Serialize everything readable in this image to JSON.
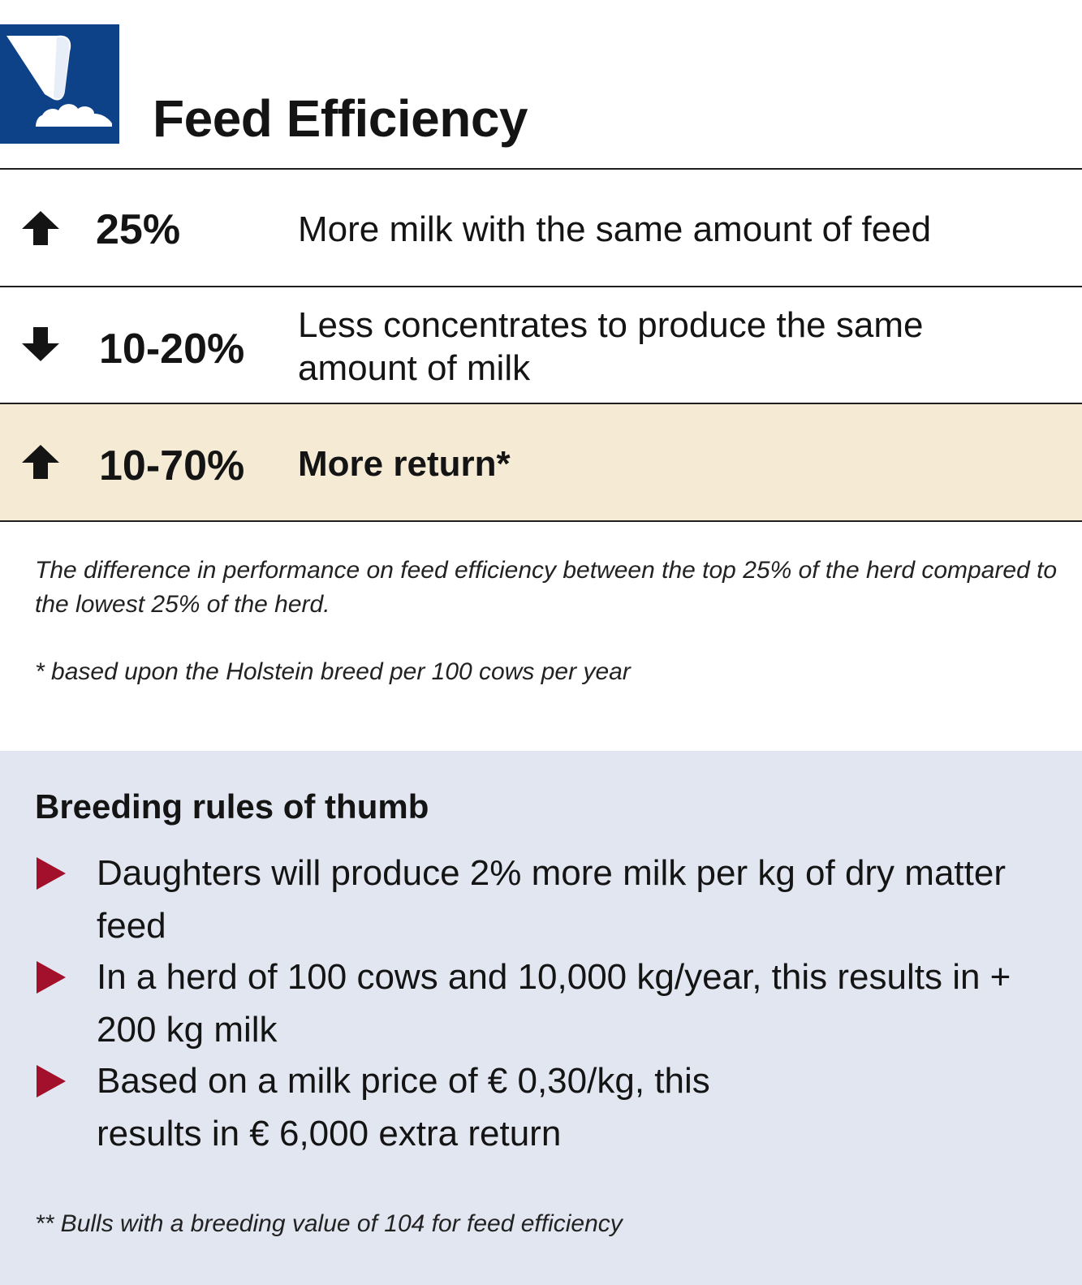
{
  "header": {
    "title": "Feed Efficiency",
    "logo_icon": "milk-pour-icon",
    "logo_color": "#0d4288"
  },
  "stats": [
    {
      "direction": "up",
      "icon": "arrow-up-icon",
      "value": "25%",
      "description": "More milk with the same amount of feed"
    },
    {
      "direction": "down",
      "icon": "arrow-down-icon",
      "value": "10-20%",
      "description": "Less concentrates to produce the same amount of milk"
    },
    {
      "direction": "up",
      "icon": "arrow-up-icon",
      "value": "10-70%",
      "description": "More return*"
    }
  ],
  "notes": {
    "difference": "The difference in performance on feed efficiency between the top 25% of the herd compared to the lowest 25% of the herd.",
    "asterisk": "* based upon the Holstein breed per 100 cows per year"
  },
  "rules": {
    "title": "Breeding rules of thumb",
    "items": [
      "Daughters will produce 2% more milk per kg of dry matter feed",
      "In a herd of 100 cows and 10,000 kg/year, this results in + 200 kg milk",
      "Based on a milk price of € 0,30/kg, this results in € 6,000 extra return"
    ],
    "footnote": "** Bulls with a breeding value of 104 for feed efficiency"
  },
  "colors": {
    "highlight_row": "#f5ebd5",
    "panel_bg": "#e2e6f0",
    "bullet": "#a2102c"
  }
}
